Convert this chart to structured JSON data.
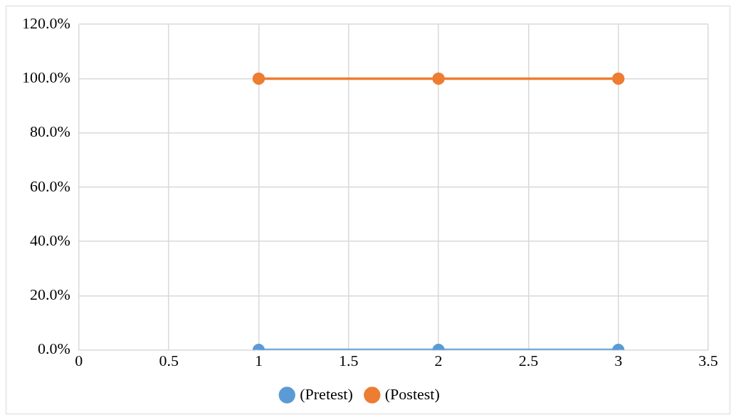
{
  "chart_data": {
    "type": "line",
    "x": [
      1,
      2,
      3
    ],
    "series": [
      {
        "name": "(Pretest)",
        "color": "#5b9bd5",
        "values": [
          0,
          0,
          0
        ]
      },
      {
        "name": "(Postest)",
        "color": "#ed7d31",
        "values": [
          100,
          100,
          100
        ]
      }
    ],
    "xlim": [
      0,
      3.5
    ],
    "xticks": [
      0,
      0.5,
      1,
      1.5,
      2,
      2.5,
      3,
      3.5
    ],
    "ylim": [
      0,
      120
    ],
    "yticks": [
      {
        "value": 0,
        "label": "0.0%"
      },
      {
        "value": 20,
        "label": "20.0%"
      },
      {
        "value": 40,
        "label": "40.0%"
      },
      {
        "value": 60,
        "label": "60.0%"
      },
      {
        "value": 80,
        "label": "80.0%"
      },
      {
        "value": 100,
        "label": "100.0%"
      },
      {
        "value": 120,
        "label": "120.0%"
      }
    ],
    "grid": true,
    "legend": "bottom",
    "marker": "circle",
    "line_style": "solid"
  }
}
